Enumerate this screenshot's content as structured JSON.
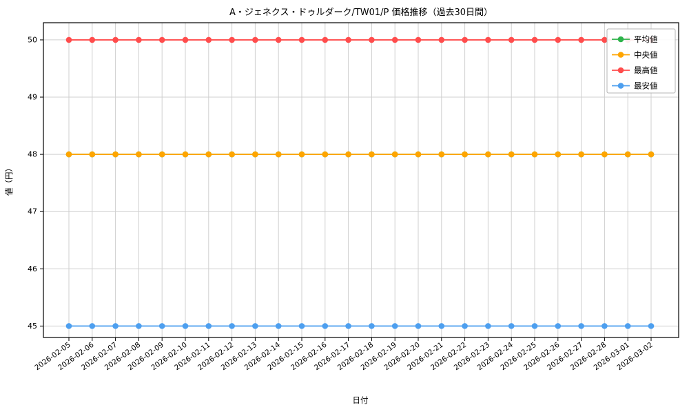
{
  "title": "A・ジェネクス・ドゥルダーク/TW01/P 価格推移（過去30日間）",
  "chart_data": {
    "type": "line",
    "title": "A・ジェネクス・ドゥルダーク/TW01/P 価格推移（過去30日間）",
    "xlabel": "日付",
    "ylabel": "値（円）",
    "x": [
      "2026-02-05",
      "2026-02-06",
      "2026-02-07",
      "2026-02-08",
      "2026-02-09",
      "2026-02-10",
      "2026-02-11",
      "2026-02-12",
      "2026-02-13",
      "2026-02-14",
      "2026-02-15",
      "2026-02-16",
      "2026-02-17",
      "2026-02-18",
      "2026-02-19",
      "2026-02-20",
      "2026-02-21",
      "2026-02-22",
      "2026-02-23",
      "2026-02-24",
      "2026-02-25",
      "2026-02-26",
      "2026-02-27",
      "2026-02-28",
      "2026-03-01",
      "2026-03-02"
    ],
    "series": [
      {
        "name": "平均値",
        "color": "#2db34a",
        "values": [
          48,
          48,
          48,
          48,
          48,
          48,
          48,
          48,
          48,
          48,
          48,
          48,
          48,
          48,
          48,
          48,
          48,
          48,
          48,
          48,
          48,
          48,
          48,
          48,
          48,
          48
        ]
      },
      {
        "name": "中央値",
        "color": "#ffa500",
        "values": [
          48,
          48,
          48,
          48,
          48,
          48,
          48,
          48,
          48,
          48,
          48,
          48,
          48,
          48,
          48,
          48,
          48,
          48,
          48,
          48,
          48,
          48,
          48,
          48,
          48,
          48
        ]
      },
      {
        "name": "最高値",
        "color": "#ff4c4c",
        "values": [
          50,
          50,
          50,
          50,
          50,
          50,
          50,
          50,
          50,
          50,
          50,
          50,
          50,
          50,
          50,
          50,
          50,
          50,
          50,
          50,
          50,
          50,
          50,
          50,
          50,
          50
        ]
      },
      {
        "name": "最安値",
        "color": "#4d9fef",
        "values": [
          45,
          45,
          45,
          45,
          45,
          45,
          45,
          45,
          45,
          45,
          45,
          45,
          45,
          45,
          45,
          45,
          45,
          45,
          45,
          45,
          45,
          45,
          45,
          45,
          45,
          45
        ]
      }
    ],
    "ylim": [
      44.8,
      50.3
    ],
    "yticks": [
      45,
      46,
      47,
      48,
      49,
      50
    ],
    "grid": true,
    "grid_color": "#cfcfcf",
    "legend_position": "upper right"
  }
}
